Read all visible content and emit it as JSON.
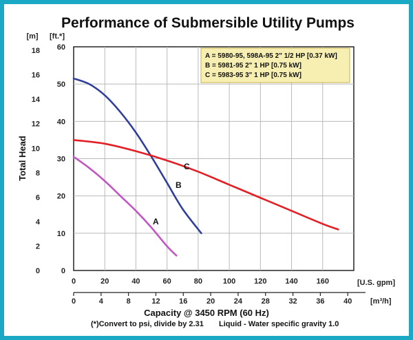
{
  "chart_data": {
    "type": "line",
    "title": "Performance of Submersible Utility Pumps",
    "ylabel": "Total Head",
    "xlabel": "Capacity @ 3450 RPM (60 Hz)",
    "y_unit_ft": "[ft.*]",
    "y_unit_m": "[m]",
    "x_unit_gpm": "[U.S. gpm]",
    "x_unit_m3h": "[m³/h]",
    "note_left": "(*)Convert to psi, divide by 2.31",
    "note_right": "Liquid - Water specific gravity 1.0",
    "ft_ticks": [
      "0",
      "10",
      "20",
      "30",
      "40",
      "50",
      "60"
    ],
    "m_ticks": [
      "0",
      "2",
      "4",
      "6",
      "8",
      "10",
      "12",
      "14",
      "16",
      "18"
    ],
    "gpm_ticks": [
      "0",
      "20",
      "40",
      "60",
      "80",
      "100",
      "120",
      "140",
      "160"
    ],
    "m3h_ticks": [
      "0",
      "4",
      "8",
      "12",
      "16",
      "20",
      "24",
      "28",
      "32",
      "36",
      "40"
    ],
    "ylim_ft": [
      0,
      60
    ],
    "xlim_gpm": [
      0,
      180
    ],
    "grid": true,
    "legend_placement": "top-right",
    "legend": [
      "A = 5980-95, 598A-95 2\" 1/2 HP [0.37 kW]",
      "B = 5981-95 2\" 1 HP [0.75 kW]",
      "C = 5983-95 3\" 1 HP [0.75 kW]"
    ],
    "series": [
      {
        "name": "A",
        "color": "#c256c2",
        "x": [
          0,
          10,
          20,
          30,
          40,
          50,
          60,
          66
        ],
        "y": [
          30.5,
          27.5,
          24,
          20,
          16,
          11.5,
          6.5,
          4
        ]
      },
      {
        "name": "B",
        "color": "#2f3f9b",
        "x": [
          0,
          10,
          20,
          30,
          40,
          50,
          60,
          70,
          82
        ],
        "y": [
          51.5,
          50,
          47,
          42.5,
          37,
          30.5,
          23.5,
          16.5,
          10
        ]
      },
      {
        "name": "C",
        "color": "#e31e24",
        "x": [
          0,
          20,
          40,
          60,
          80,
          100,
          120,
          140,
          160,
          170
        ],
        "y": [
          35,
          34,
          32,
          29.5,
          26.5,
          23,
          19.5,
          16,
          12.5,
          11
        ]
      }
    ]
  }
}
